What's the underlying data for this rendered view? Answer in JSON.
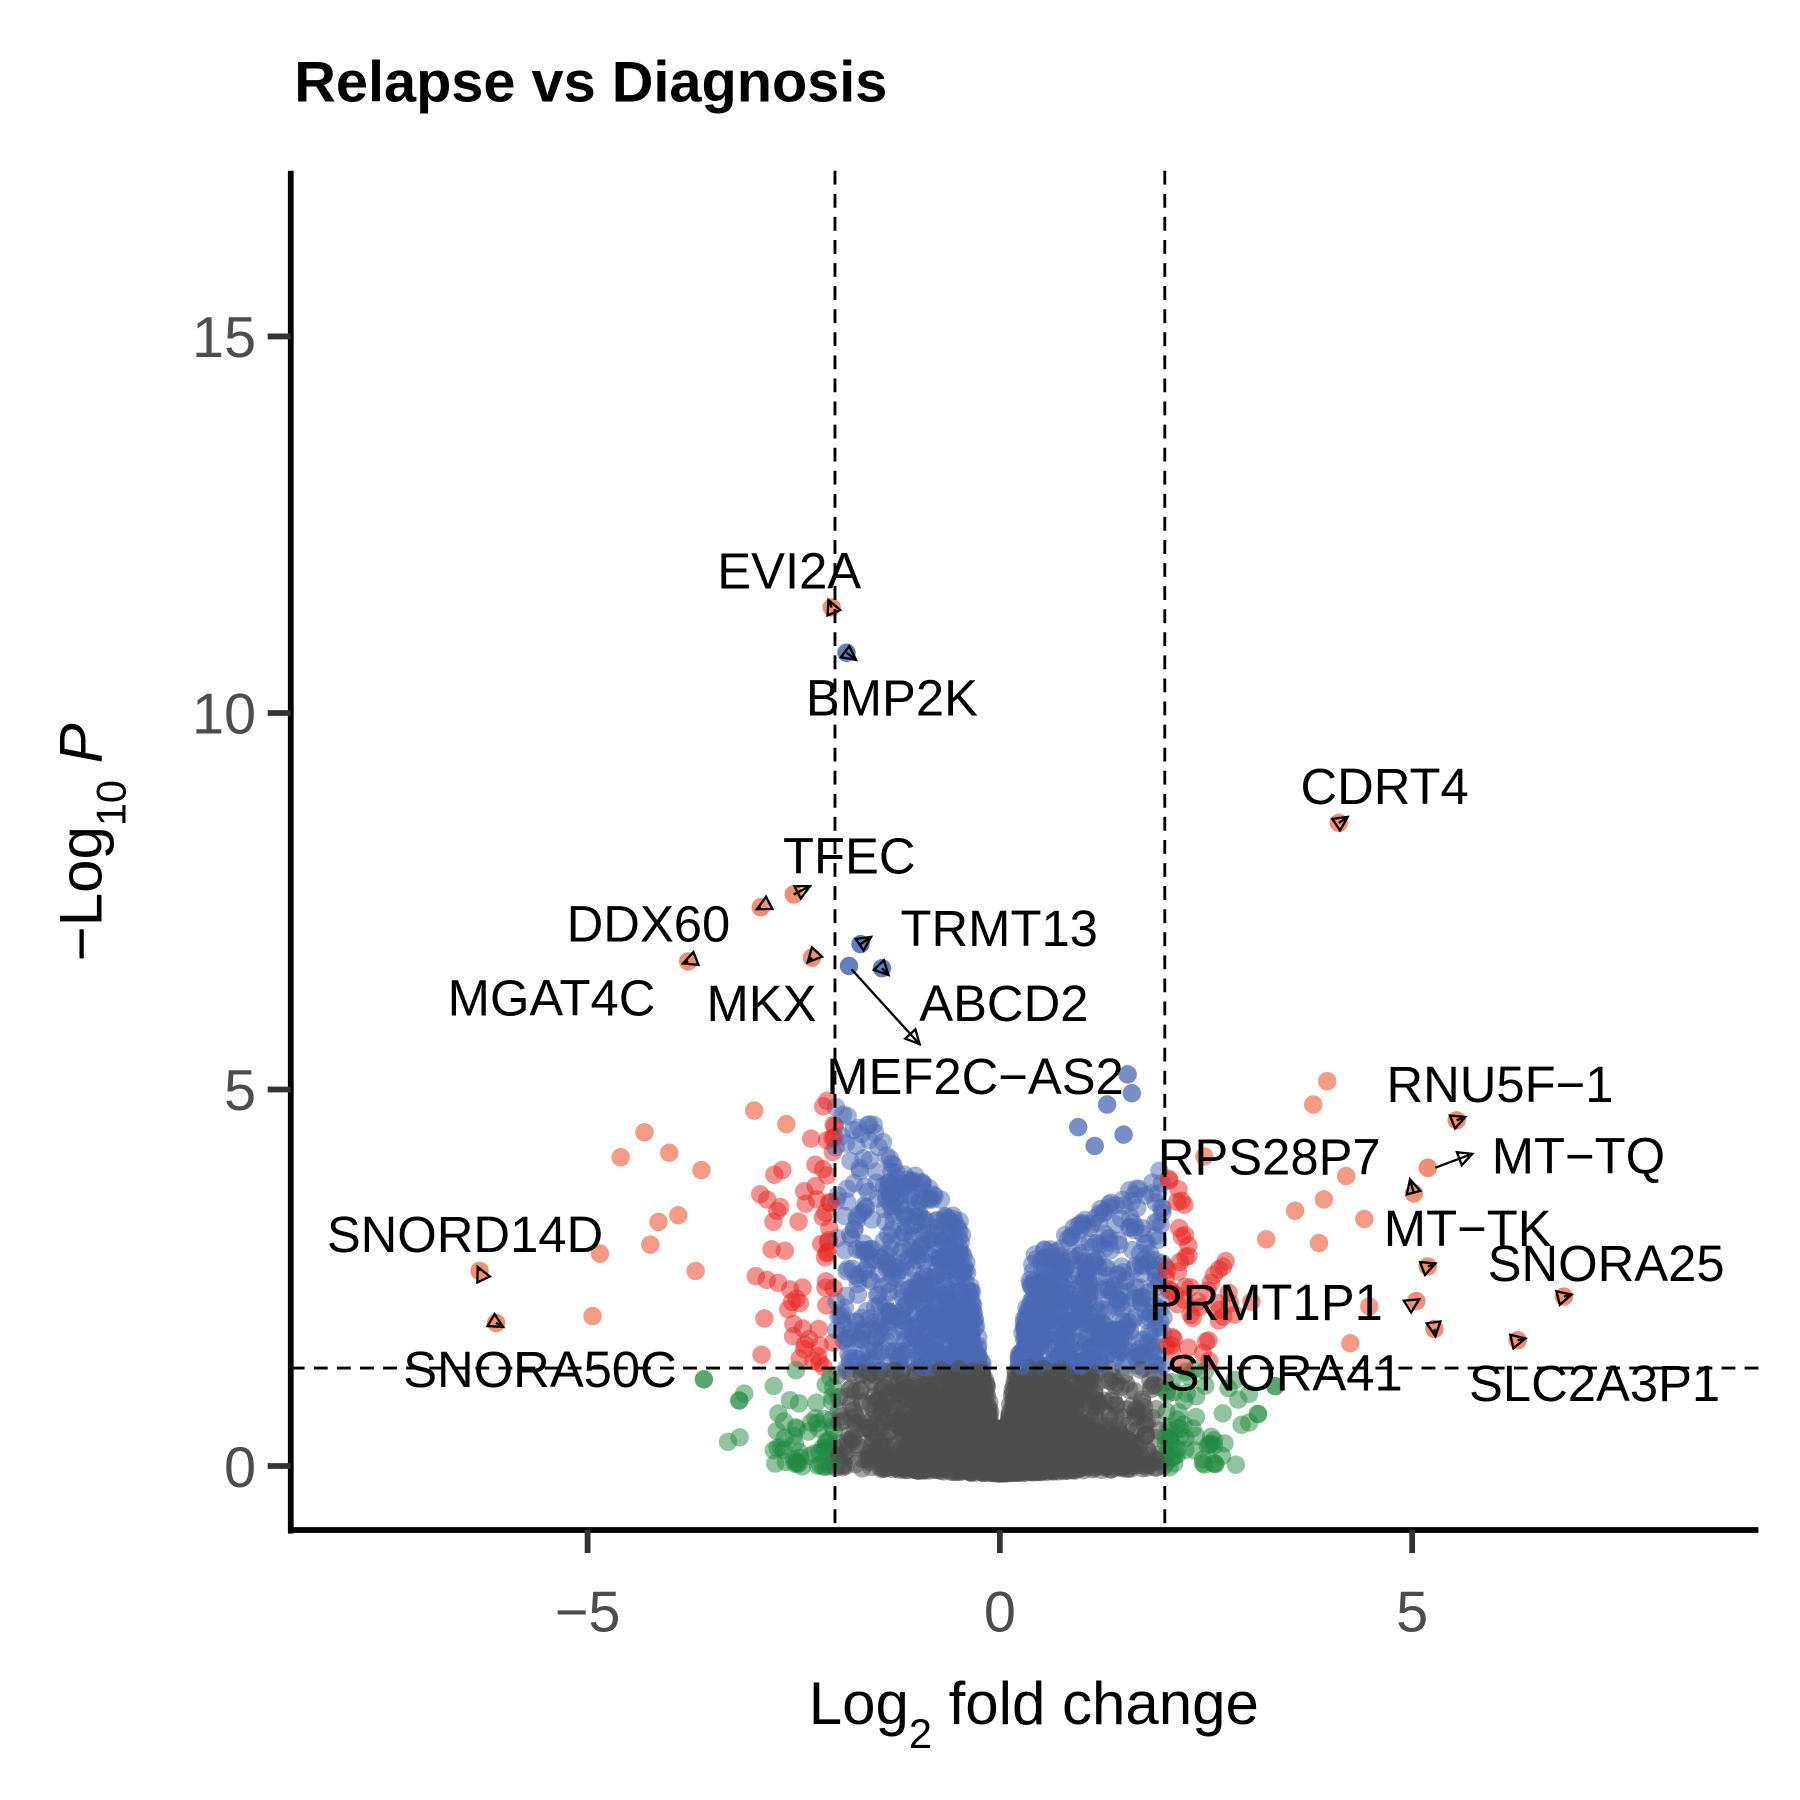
{
  "chart_data": {
    "type": "scatter",
    "title": "Relapse vs Diagnosis",
    "xlabel": {
      "main": "Log",
      "sub": "2",
      "rest": " fold change"
    },
    "ylabel": {
      "main": "−Log",
      "sub": "10",
      "rest": " P"
    },
    "xlim": [
      -8.6,
      9.2
    ],
    "ylim": [
      -0.85,
      17.2
    ],
    "xticks": [
      -5,
      0,
      5
    ],
    "xtick_labels": [
      "−5",
      "0",
      "5"
    ],
    "yticks": [
      0,
      5,
      10,
      15
    ],
    "ytick_labels": [
      "0",
      "5",
      "10",
      "15"
    ],
    "fc_cutoff": 2,
    "p_cutoff_neglog10": 1.3,
    "grid": false,
    "legend": "none",
    "colors": {
      "ns": "#4d4d4d",
      "log2fc_only": "#1f8a3f",
      "p_only": "#4a68b3",
      "p_and_log2fc": "#e8231f",
      "outlier_sig": "#ef7a5e"
    },
    "labeled_genes": [
      {
        "gene": "EVI2A",
        "x": -2.04,
        "y": 11.4,
        "category": "p_and_log2fc"
      },
      {
        "gene": "BMP2K",
        "x": -1.86,
        "y": 10.8,
        "category": "p_only"
      },
      {
        "gene": "CDRT4",
        "x": 4.11,
        "y": 8.54,
        "category": "p_and_log2fc"
      },
      {
        "gene": "TFEC",
        "x": -2.5,
        "y": 7.59,
        "category": "p_and_log2fc"
      },
      {
        "gene": "DDX60",
        "x": -2.9,
        "y": 7.42,
        "category": "p_and_log2fc"
      },
      {
        "gene": "TRMT13",
        "x": -1.69,
        "y": 6.93,
        "category": "p_only"
      },
      {
        "gene": "MGAT4C",
        "x": -3.78,
        "y": 6.7,
        "category": "p_and_log2fc"
      },
      {
        "gene": "MKX",
        "x": -2.28,
        "y": 6.75,
        "category": "p_and_log2fc"
      },
      {
        "gene": "ABCD2",
        "x": -1.43,
        "y": 6.61,
        "category": "p_only"
      },
      {
        "gene": "MEF2C−AS2",
        "x": -1.83,
        "y": 6.64,
        "category": "p_only"
      },
      {
        "gene": "RNU5F−1",
        "x": 5.54,
        "y": 4.59,
        "category": "p_and_log2fc"
      },
      {
        "gene": "MT−TQ",
        "x": 5.19,
        "y": 3.96,
        "category": "p_and_log2fc"
      },
      {
        "gene": "RPS28P7",
        "x": 5.02,
        "y": 3.62,
        "category": "p_and_log2fc"
      },
      {
        "gene": "MT−TK",
        "x": 5.19,
        "y": 2.65,
        "category": "p_and_log2fc"
      },
      {
        "gene": "SNORA25",
        "x": 6.84,
        "y": 2.25,
        "category": "p_and_log2fc"
      },
      {
        "gene": "PRMT1P1",
        "x": 5.05,
        "y": 2.19,
        "category": "p_and_log2fc"
      },
      {
        "gene": "SLC2A3P1",
        "x": 6.28,
        "y": 1.67,
        "category": "p_and_log2fc"
      },
      {
        "gene": "SNORA41",
        "x": 5.27,
        "y": 1.82,
        "category": "p_and_log2fc"
      },
      {
        "gene": "SNORD14D",
        "x": -6.31,
        "y": 2.59,
        "category": "p_and_log2fc"
      },
      {
        "gene": "SNORA50C",
        "x": -6.11,
        "y": 1.9,
        "category": "p_and_log2fc"
      }
    ],
    "other_points": [
      [
        -4.31,
        4.43
      ],
      [
        -4.6,
        4.1
      ],
      [
        -4.01,
        4.16
      ],
      [
        -3.62,
        3.93
      ],
      [
        -2.98,
        4.72
      ],
      [
        -2.59,
        4.54
      ],
      [
        -3.9,
        3.33
      ],
      [
        -4.14,
        3.24
      ],
      [
        -4.24,
        2.94
      ],
      [
        -4.85,
        2.82
      ],
      [
        -4.94,
        1.99
      ],
      [
        -3.69,
        2.59
      ],
      [
        3.97,
        5.11
      ],
      [
        3.8,
        4.8
      ],
      [
        4.2,
        3.85
      ],
      [
        3.93,
        3.54
      ],
      [
        3.58,
        3.39
      ],
      [
        4.42,
        3.28
      ],
      [
        3.87,
        2.96
      ],
      [
        4.48,
        2.12
      ],
      [
        4.25,
        1.63
      ],
      [
        2.48,
        4.11
      ],
      [
        3.23,
        3.01
      ],
      [
        -3.59,
        1.15
      ],
      [
        -3.16,
        0.87
      ],
      [
        3.13,
        0.69
      ],
      [
        3.34,
        1.06
      ],
      [
        1.55,
        5.2
      ],
      [
        1.6,
        4.95
      ],
      [
        1.3,
        4.8
      ],
      [
        0.95,
        4.5
      ],
      [
        1.5,
        4.4
      ],
      [
        1.15,
        4.25
      ]
    ]
  }
}
